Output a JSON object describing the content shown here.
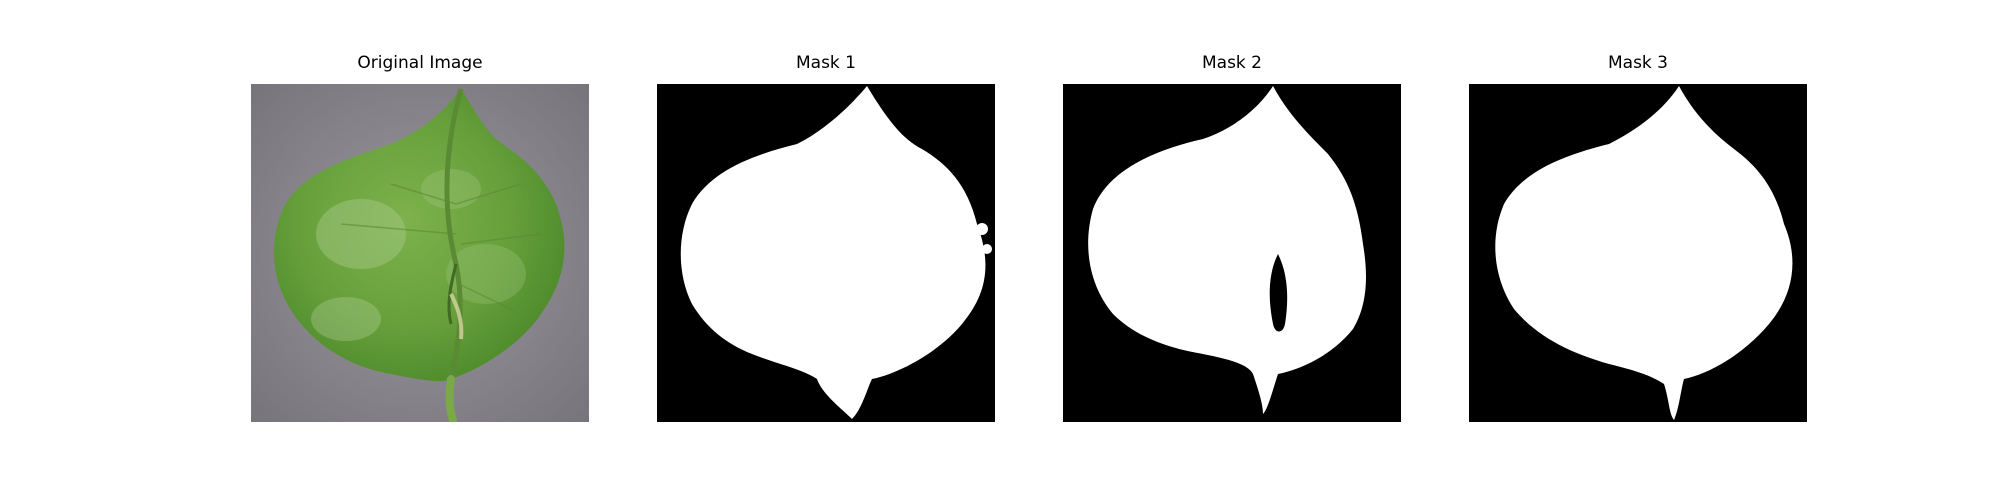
{
  "panels": [
    {
      "title": "Original Image",
      "kind": "photo"
    },
    {
      "title": "Mask 1",
      "kind": "mask"
    },
    {
      "title": "Mask 2",
      "kind": "mask"
    },
    {
      "title": "Mask 3",
      "kind": "mask"
    }
  ],
  "colors": {
    "background": "#ffffff",
    "mask_background": "#000000",
    "mask_foreground": "#ffffff",
    "photo_background": "#8e8c92",
    "leaf_green": "#6aa33f",
    "leaf_light": "#a8c98a",
    "leaf_vein": "#5b8a34"
  }
}
